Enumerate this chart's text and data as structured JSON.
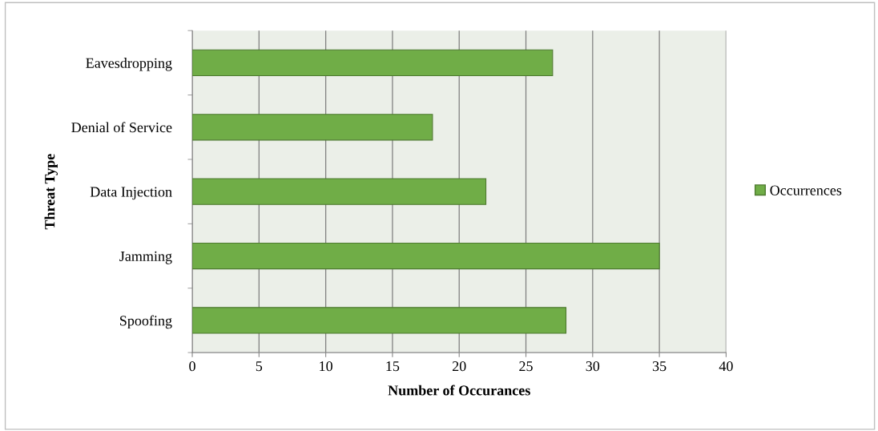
{
  "chart_data": {
    "type": "bar",
    "orientation": "horizontal",
    "xlabel": "Number of Occurances",
    "ylabel": "Threat Type",
    "categories": [
      "Eavesdropping",
      "Denial of Service",
      "Data Injection",
      "Jamming",
      "Spoofing"
    ],
    "series": [
      {
        "name": "Occurrences",
        "color": "#70ad47",
        "values": [
          27,
          18,
          22,
          35,
          28
        ]
      }
    ],
    "xlim": [
      0,
      40
    ],
    "xticks": [
      0,
      5,
      10,
      15,
      20,
      25,
      30,
      35,
      40
    ],
    "grid": "x",
    "legend": "right"
  }
}
